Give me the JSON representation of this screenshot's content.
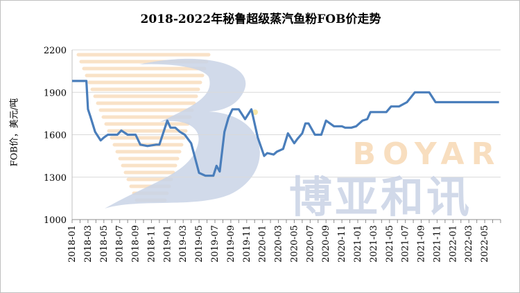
{
  "chart_data": {
    "type": "line",
    "title": "2018-2022年秘鲁超级蒸汽鱼粉FOB价走势",
    "xlabel": "",
    "ylabel": "FOB价，美元/吨",
    "ylim": [
      1000,
      2200
    ],
    "yticks": [
      1000,
      1300,
      1600,
      1900,
      2200
    ],
    "grid": true,
    "legend": "none",
    "x_tick_labels": [
      "2018-01",
      "2018-03",
      "2018-05",
      "2018-07",
      "2018-09",
      "2018-11",
      "2019-01",
      "2019-03",
      "2019-05",
      "2019-07",
      "2019-09",
      "2019-11",
      "2020-01",
      "2020-03",
      "2020-05",
      "2020-07",
      "2020-09",
      "2020-11",
      "2021-01",
      "2021-03",
      "2021-05",
      "2021-07",
      "2021-09",
      "2021-11",
      "2022-01",
      "2022-03",
      "2022-05"
    ],
    "series": [
      {
        "color": "#4a7ebb",
        "x": [
          0,
          0.9,
          1.0,
          1.15,
          1.45,
          1.8,
          2.0,
          2.25,
          2.6,
          2.85,
          3.1,
          3.5,
          4.0,
          4.3,
          4.75,
          5.3,
          5.5,
          6.0,
          6.2,
          6.5,
          6.8,
          7.1,
          7.5,
          8.0,
          8.4,
          8.9,
          9.1,
          9.3,
          9.6,
          9.85,
          10.1,
          10.5,
          10.9,
          11.3,
          11.7,
          12.1,
          12.3,
          12.7,
          12.9,
          13.3,
          13.6,
          14.0,
          14.2,
          14.5,
          14.7,
          14.9,
          15.3,
          15.7,
          16.0,
          16.5,
          17.0,
          17.2,
          17.6,
          17.9,
          18.3,
          18.6,
          18.8,
          19.1,
          19.5,
          19.8,
          20.1,
          20.6,
          21.1,
          21.6,
          22.1,
          22.5,
          22.9,
          23.3,
          23.7,
          24.2,
          24.6,
          25.0,
          25.3,
          25.6,
          26.0,
          26.4,
          26.6,
          26.9
        ],
        "values": [
          1980,
          1980,
          1780,
          1730,
          1620,
          1560,
          1580,
          1600,
          1600,
          1600,
          1630,
          1600,
          1600,
          1530,
          1520,
          1530,
          1530,
          1700,
          1650,
          1650,
          1620,
          1600,
          1540,
          1330,
          1310,
          1310,
          1380,
          1340,
          1620,
          1720,
          1780,
          1780,
          1710,
          1780,
          1580,
          1450,
          1470,
          1460,
          1480,
          1500,
          1610,
          1540,
          1570,
          1610,
          1680,
          1680,
          1600,
          1600,
          1700,
          1660,
          1660,
          1650,
          1650,
          1660,
          1700,
          1710,
          1760,
          1760,
          1760,
          1760,
          1800,
          1800,
          1830,
          1900,
          1900,
          1900,
          1830,
          1830,
          1830,
          1830,
          1830,
          1830,
          1830,
          1830,
          1830,
          1830,
          1830,
          1830
        ]
      }
    ]
  },
  "watermark": {
    "brand_latin": "BOYAR",
    "brand_cn": "博亚和讯"
  }
}
